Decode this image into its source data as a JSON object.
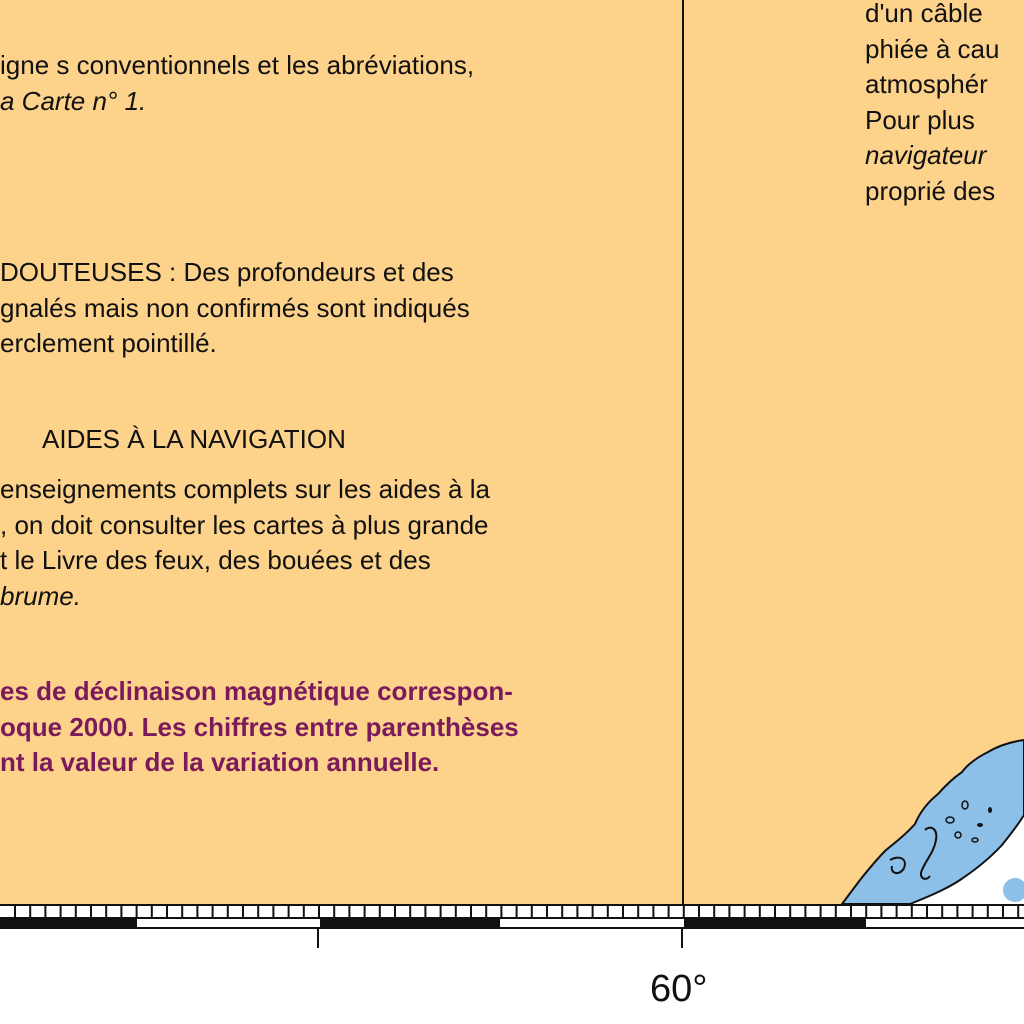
{
  "notes": {
    "p1": [
      "igne s conventionnels et les abréviations,",
      "a Carte n° 1."
    ],
    "p2": [
      "DOUTEUSES : Des profondeurs et des",
      "gnalés mais non confirmés sont indiqués",
      "erclement pointillé."
    ],
    "heading": "AIDES À LA NAVIGATION",
    "p3": [
      "enseignements complets sur les aides à la",
      ", on doit consulter les cartes à plus grande",
      "t le Livre des feux, des bouées et des",
      "brume."
    ],
    "p4": [
      "es de déclinaison magnétique correspon-",
      "oque 2000. Les chiffres entre parenthèses",
      "nt la valeur de la variation annuelle."
    ]
  },
  "right_notes": [
    "d'un câble",
    "phiée à cau",
    "atmosphér",
    "Pour plus",
    "navigateur",
    "proprié des"
  ],
  "scale": {
    "longitude_label": "60°"
  },
  "colors": {
    "land_fill": "#fdd28a",
    "water_fill": "#8dc0e8",
    "magenta": "#7a1a5c"
  }
}
